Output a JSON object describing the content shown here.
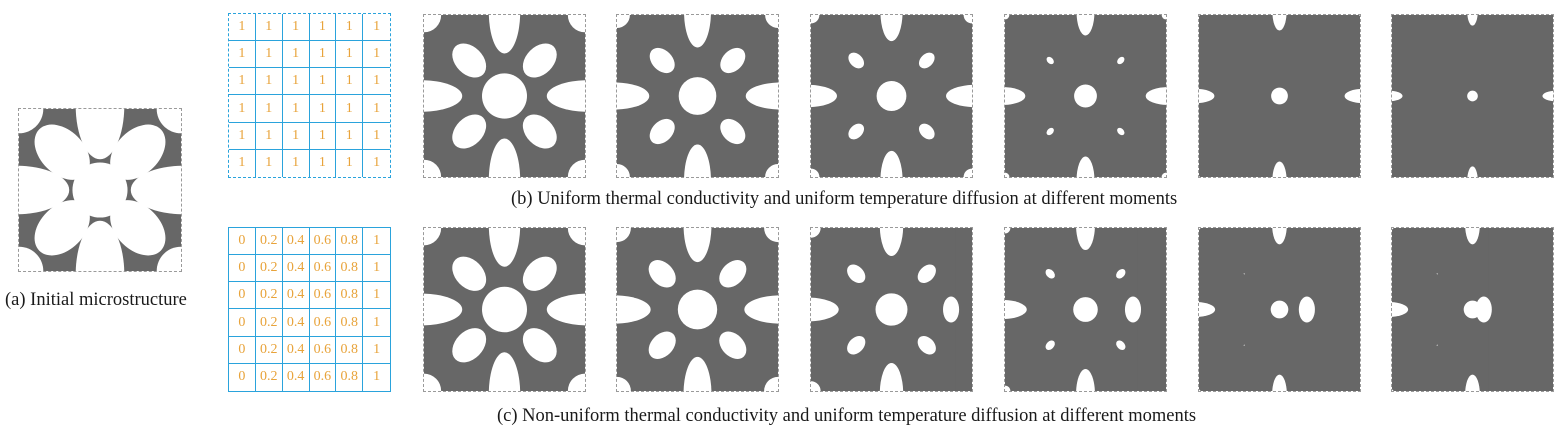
{
  "caption_a": "(a) Initial microstructure",
  "caption_b": "(b) Uniform thermal conductivity and uniform temperature diffusion at different moments",
  "caption_c": "(c) Non-uniform thermal conductivity and uniform temperature diffusion at different moments",
  "grid_uniform": [
    [
      "1",
      "1",
      "1",
      "1",
      "1",
      "1"
    ],
    [
      "1",
      "1",
      "1",
      "1",
      "1",
      "1"
    ],
    [
      "1",
      "1",
      "1",
      "1",
      "1",
      "1"
    ],
    [
      "1",
      "1",
      "1",
      "1",
      "1",
      "1"
    ],
    [
      "1",
      "1",
      "1",
      "1",
      "1",
      "1"
    ],
    [
      "1",
      "1",
      "1",
      "1",
      "1",
      "1"
    ]
  ],
  "grid_nonuniform": [
    [
      "0",
      "0.2",
      "0.4",
      "0.6",
      "0.8",
      "1"
    ],
    [
      "0",
      "0.2",
      "0.4",
      "0.6",
      "0.8",
      "1"
    ],
    [
      "0",
      "0.2",
      "0.4",
      "0.6",
      "0.8",
      "1"
    ],
    [
      "0",
      "0.2",
      "0.4",
      "0.6",
      "0.8",
      "1"
    ],
    [
      "0",
      "0.2",
      "0.4",
      "0.6",
      "0.8",
      "1"
    ],
    [
      "0",
      "0.2",
      "0.4",
      "0.6",
      "0.8",
      "1"
    ]
  ],
  "colors": {
    "material": "#676767",
    "grid_line": "#2aa3dc",
    "grid_text": "#e8a33a",
    "panel_border": "#9a9a9a"
  },
  "uniform_stages": [
    0.15,
    0.32,
    0.5,
    0.66,
    0.8,
    0.94
  ],
  "nonuniform_stages": [
    0.15,
    0.28,
    0.45,
    0.62,
    0.78
  ]
}
